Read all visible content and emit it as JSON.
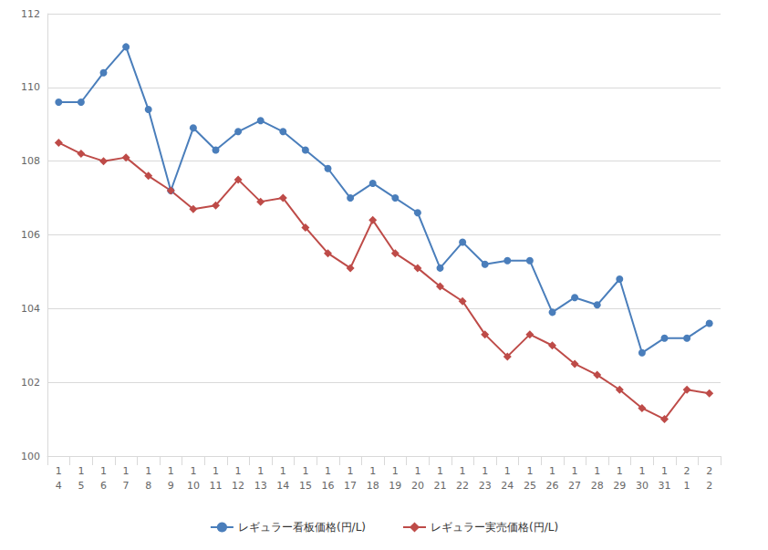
{
  "chart_data": {
    "type": "line",
    "categories": [
      "1\n4",
      "1\n5",
      "1\n6",
      "1\n7",
      "1\n8",
      "1\n9",
      "1\n10",
      "1\n11",
      "1\n12",
      "1\n13",
      "1\n14",
      "1\n15",
      "1\n16",
      "1\n17",
      "1\n18",
      "1\n19",
      "1\n20",
      "1\n21",
      "1\n22",
      "1\n23",
      "1\n24",
      "1\n25",
      "1\n26",
      "1\n27",
      "1\n28",
      "1\n29",
      "1\n30",
      "1\n31",
      "2\n1",
      "2\n2"
    ],
    "series": [
      {
        "name": "レギュラー看板価格(円/L)",
        "color": "#4a7ebb",
        "marker": "circle",
        "values": [
          109.6,
          109.6,
          110.4,
          111.1,
          109.4,
          107.2,
          108.9,
          108.3,
          108.8,
          109.1,
          108.8,
          108.3,
          107.8,
          107.0,
          107.4,
          107.0,
          106.6,
          105.1,
          105.8,
          105.2,
          105.3,
          105.3,
          103.9,
          104.3,
          104.1,
          104.8,
          102.8,
          103.2,
          103.2,
          103.6
        ]
      },
      {
        "name": "レギュラー実売価格(円/L)",
        "color": "#be4b48",
        "marker": "diamond",
        "values": [
          108.5,
          108.2,
          108.0,
          108.1,
          107.6,
          107.2,
          106.7,
          106.8,
          107.5,
          106.9,
          107.0,
          106.2,
          105.5,
          105.1,
          106.4,
          105.5,
          105.1,
          104.6,
          104.2,
          103.3,
          102.7,
          103.3,
          103.0,
          102.5,
          102.2,
          101.8,
          101.3,
          101.0,
          101.8,
          101.7
        ]
      }
    ],
    "ylim": [
      100,
      112
    ],
    "yticks": [
      100,
      102,
      104,
      106,
      108,
      110,
      112
    ],
    "grid": true,
    "legend": "bottom"
  }
}
